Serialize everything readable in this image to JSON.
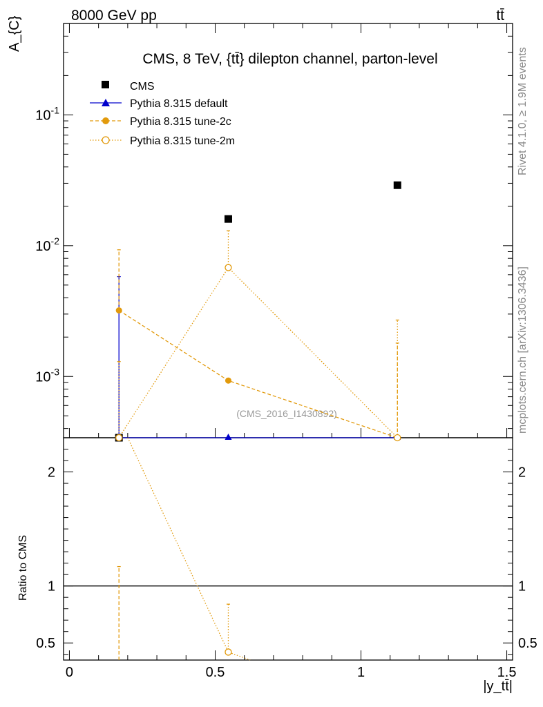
{
  "header": {
    "energy": "8000 GeV pp",
    "process": "tt̄",
    "side_top": "Rivet 4.1.0, ≥ 1.9M events",
    "side_bottom": "mcplots.cern.ch [arXiv:1306.3436]"
  },
  "chart_data": {
    "type": "scatter",
    "title": "CMS, 8 TeV, {tt̄} dilepton channel, parton-level",
    "watermark": "(CMS_2016_I1430892)",
    "xlabel": "|y_tt̄|",
    "ylabel": "A_{C}",
    "ratio_ylabel": "Ratio to CMS",
    "xlim": [
      -0.02,
      1.52
    ],
    "ylim": [
      0.00034,
      0.5
    ],
    "yscale": "log",
    "ratio_ylim": [
      0.35,
      2.3
    ],
    "x_ticks": [
      "0",
      "0.5",
      "1",
      "1.5"
    ],
    "y_ticks": [
      "10^-3",
      "10^-2",
      "10^-1"
    ],
    "ratio_ticks": [
      "0.5",
      "1",
      "2"
    ],
    "legend": [
      "CMS",
      "Pythia 8.315 default",
      "Pythia 8.315 tune-2c",
      "Pythia 8.315 tune-2m"
    ],
    "series": [
      {
        "name": "CMS",
        "style": "data",
        "color": "#000000",
        "x": [
          0.17,
          0.545,
          1.125
        ],
        "y": [
          0.00034,
          0.016,
          0.029
        ],
        "err": [
          0,
          0,
          0
        ]
      },
      {
        "name": "Pythia 8.315 default",
        "style": "solid",
        "color": "#0000cc",
        "x": [
          0.17,
          0.545,
          1.125
        ],
        "y": [
          0.00034,
          0.00034,
          0.00034
        ],
        "err_hi": [
          0.0058,
          0,
          0
        ]
      },
      {
        "name": "Pythia 8.315 tune-2c",
        "style": "dashed",
        "color": "#e29a0c",
        "x": [
          0.17,
          0.545,
          1.125
        ],
        "y": [
          0.0032,
          0.00093,
          0.00034
        ],
        "err_hi": [
          0.0093,
          0.00093,
          0.0018
        ]
      },
      {
        "name": "Pythia 8.315 tune-2m",
        "style": "dotted",
        "color": "#e29a0c",
        "x": [
          0.17,
          0.545,
          1.125
        ],
        "y": [
          0.00034,
          0.0068,
          0.00034
        ],
        "err_hi": [
          0.0013,
          0.013,
          0.0027
        ]
      }
    ],
    "ratio_series": [
      {
        "name": "Pythia 8.315 tune-2c",
        "style": "dashed",
        "color": "#e29a0c",
        "x": [
          0.17
        ],
        "y": [
          0.35
        ],
        "err_hi": [
          1.17
        ]
      },
      {
        "name": "Pythia 8.315 tune-2m",
        "style": "dotted",
        "color": "#e29a0c",
        "x": [
          0.2,
          0.545,
          0.62
        ],
        "y": [
          2.35,
          0.42,
          0.35
        ],
        "err_hi": [
          null,
          0.84,
          null
        ]
      }
    ]
  }
}
